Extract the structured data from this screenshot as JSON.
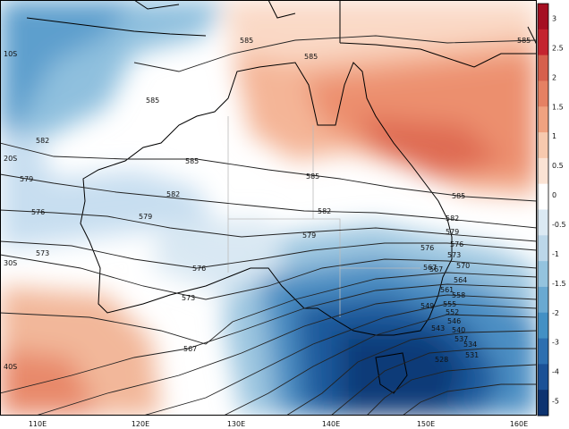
{
  "map": {
    "lat_labels": [
      "10S",
      "20S",
      "30S",
      "40S"
    ],
    "lon_labels": [
      "110E",
      "120E",
      "130E",
      "140E",
      "150E",
      "160E"
    ],
    "contour_labels": [
      "585",
      "585",
      "585",
      "585",
      "585",
      "585",
      "585",
      "582",
      "582",
      "582",
      "582",
      "579",
      "579",
      "579",
      "579",
      "576",
      "576",
      "576",
      "576",
      "573",
      "573",
      "573",
      "570",
      "567",
      "567",
      "567",
      "564",
      "561",
      "558",
      "555",
      "552",
      "549",
      "546",
      "543",
      "540",
      "537",
      "534",
      "531",
      "528"
    ],
    "colorbar": {
      "ticks": [
        "3",
        "2.5",
        "2",
        "1.5",
        "1",
        "0.5",
        "0",
        "-0.5",
        "-1",
        "-1.5",
        "-2",
        "-3",
        "-4",
        "-5"
      ],
      "colors": [
        "#a50f22",
        "#c4242f",
        "#d6604d",
        "#e58163",
        "#f0a280",
        "#f7c9ae",
        "#fbe3d4",
        "#ffffff",
        "#dbe9f3",
        "#bcd7e9",
        "#94c3de",
        "#6aa9d1",
        "#4390c4",
        "#2d6fb0",
        "#1b5196",
        "#0d3370"
      ]
    }
  }
}
